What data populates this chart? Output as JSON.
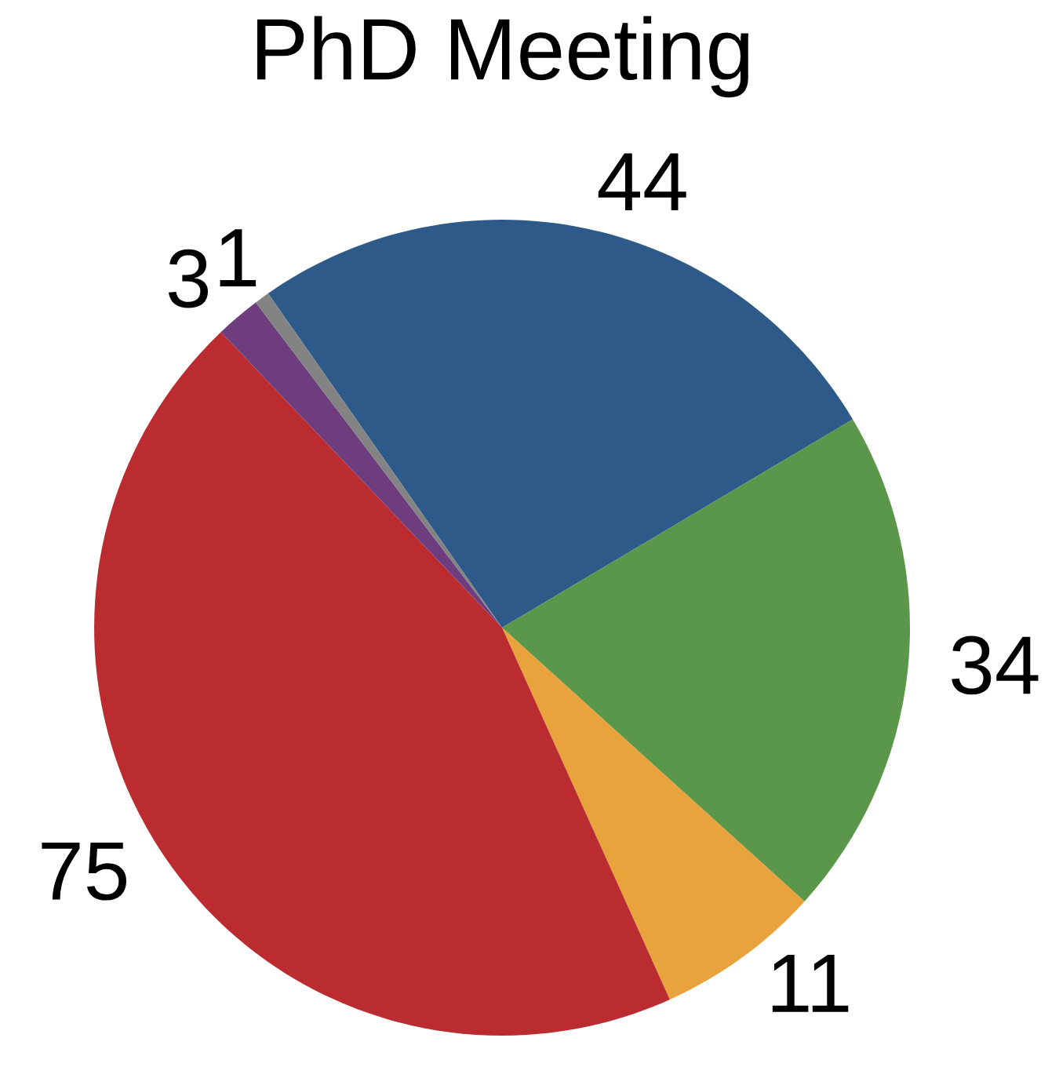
{
  "chart_data": {
    "type": "pie",
    "title": "PhD Meeting",
    "categories": [
      null,
      null,
      null,
      null,
      null,
      null
    ],
    "values": [
      44,
      34,
      11,
      75,
      3,
      1
    ],
    "colors": [
      "#2e5a8a",
      "#5b974a",
      "#e8a33d",
      "#bb2c31",
      "#6e3d7d",
      "#838383"
    ],
    "data_labels": true
  }
}
